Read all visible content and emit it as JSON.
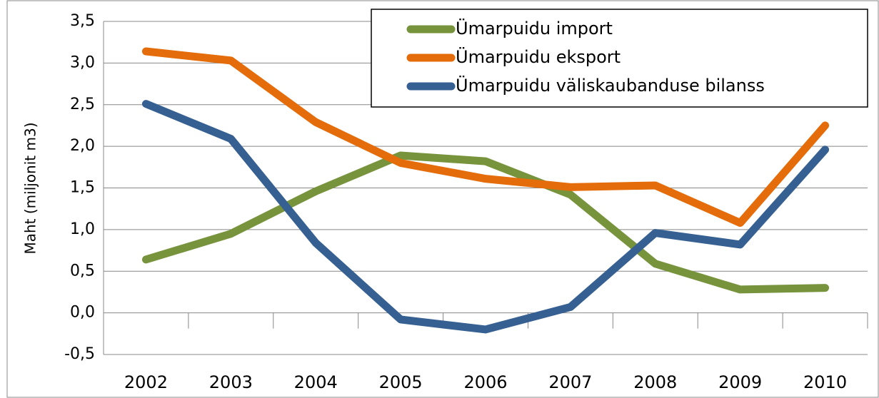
{
  "chart_data": {
    "type": "line",
    "ylabel": "Maht (miljonit m3)",
    "categories": [
      "2002",
      "2003",
      "2004",
      "2005",
      "2006",
      "2007",
      "2008",
      "2009",
      "2010"
    ],
    "series": [
      {
        "name": "Ümarpuidu import",
        "color": "#77933c",
        "values": [
          0.64,
          0.95,
          1.46,
          1.89,
          1.82,
          1.42,
          0.59,
          0.28,
          0.3
        ]
      },
      {
        "name": "Ümarpuidu eksport",
        "color": "#e46c0a",
        "values": [
          3.14,
          3.03,
          2.29,
          1.8,
          1.61,
          1.51,
          1.53,
          1.08,
          2.25
        ]
      },
      {
        "name": "Ümarpuidu väliskaubanduse bilanss",
        "color": "#366092",
        "values": [
          2.51,
          2.09,
          0.84,
          -0.08,
          -0.2,
          0.07,
          0.96,
          0.82,
          1.96
        ]
      }
    ],
    "ylim": [
      -0.5,
      3.5
    ],
    "yticks": [
      {
        "value": -0.5,
        "label": "-0,5"
      },
      {
        "value": 0,
        "label": "0,0"
      },
      {
        "value": 0.5,
        "label": "0,5"
      },
      {
        "value": 1,
        "label": "1,0"
      },
      {
        "value": 1.5,
        "label": "1,5"
      },
      {
        "value": 2,
        "label": "2,0"
      },
      {
        "value": 2.5,
        "label": "2,5"
      },
      {
        "value": 3,
        "label": "3,0"
      },
      {
        "value": 3.5,
        "label": "3,5"
      }
    ],
    "grid": true,
    "legend": "top-right"
  }
}
